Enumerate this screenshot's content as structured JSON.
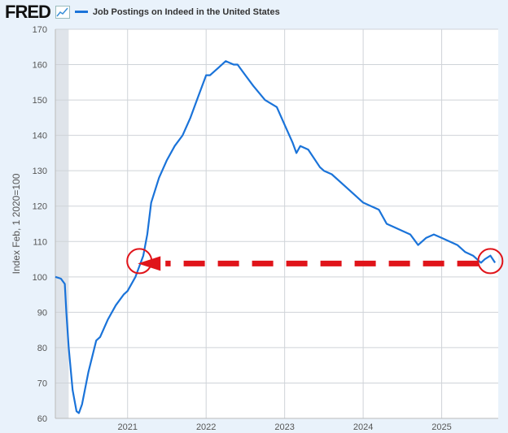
{
  "header": {
    "logo": "FRED",
    "series_title": "Job Postings on Indeed in the United States"
  },
  "colors": {
    "line": "#1a73d9",
    "annotation": "#e0141a",
    "recession": "#dfe4ea"
  },
  "chart_data": {
    "type": "line",
    "title": "Job Postings on Indeed in the United States",
    "ylabel": "Index Feb, 1 2020=100",
    "xlabel": "",
    "ylim": [
      60,
      170
    ],
    "xlim": [
      2020.08,
      2025.72
    ],
    "yticks": [
      60,
      70,
      80,
      90,
      100,
      110,
      120,
      130,
      140,
      150,
      160,
      170
    ],
    "xticks": [
      {
        "v": 2021,
        "label": "2021"
      },
      {
        "v": 2022,
        "label": "2022"
      },
      {
        "v": 2023,
        "label": "2023"
      },
      {
        "v": 2024,
        "label": "2024"
      },
      {
        "v": 2025,
        "label": "2025"
      }
    ],
    "recession": [
      2020.08,
      2020.25
    ],
    "series": [
      {
        "name": "Job Postings on Indeed in the United States",
        "x": [
          2020.08,
          2020.15,
          2020.2,
          2020.22,
          2020.25,
          2020.3,
          2020.35,
          2020.38,
          2020.42,
          2020.5,
          2020.6,
          2020.65,
          2020.75,
          2020.85,
          2020.95,
          2021.0,
          2021.1,
          2021.2,
          2021.25,
          2021.3,
          2021.4,
          2021.5,
          2021.6,
          2021.7,
          2021.8,
          2021.9,
          2022.0,
          2022.05,
          2022.15,
          2022.25,
          2022.35,
          2022.4,
          2022.5,
          2022.6,
          2022.75,
          2022.9,
          2023.0,
          2023.1,
          2023.15,
          2023.2,
          2023.3,
          2023.45,
          2023.5,
          2023.6,
          2023.75,
          2023.9,
          2024.0,
          2024.1,
          2024.2,
          2024.3,
          2024.4,
          2024.5,
          2024.6,
          2024.7,
          2024.8,
          2024.9,
          2025.0,
          2025.1,
          2025.2,
          2025.3,
          2025.4,
          2025.5,
          2025.55,
          2025.62,
          2025.68
        ],
        "y": [
          100,
          99.5,
          98,
          90,
          80,
          68,
          62,
          61.5,
          64,
          73,
          82,
          83,
          88,
          92,
          95,
          96,
          100,
          106,
          112,
          121,
          128,
          133,
          137,
          140,
          145,
          151,
          157,
          157,
          159,
          161,
          160,
          160,
          157,
          154,
          150,
          148,
          143,
          138,
          135,
          137,
          136,
          131,
          130,
          129,
          126,
          123,
          121,
          120,
          119,
          115,
          114,
          113,
          112,
          109,
          111,
          112,
          111,
          110,
          109,
          107,
          106,
          104,
          105,
          106,
          104
        ]
      }
    ],
    "annotations": [
      {
        "type": "arrow",
        "from": [
          2025.55,
          104
        ],
        "to": [
          2021.15,
          104
        ]
      },
      {
        "type": "circle",
        "at": [
          2021.15,
          104
        ]
      },
      {
        "type": "circle",
        "at": [
          2025.62,
          104
        ]
      }
    ]
  }
}
